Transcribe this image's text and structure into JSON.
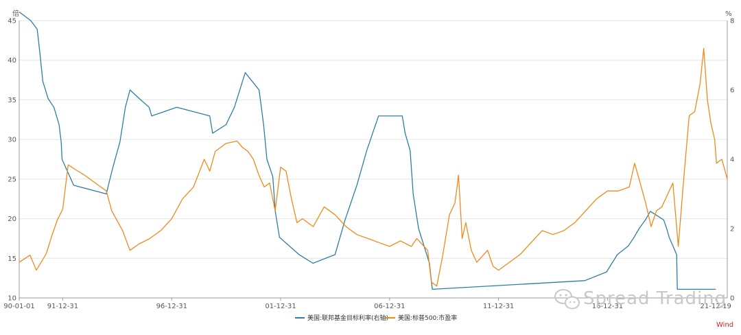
{
  "chart_data": {
    "type": "line",
    "left_axis": {
      "unit": "倍",
      "range": [
        10,
        45
      ],
      "ticks": [
        10,
        15,
        20,
        25,
        30,
        35,
        40,
        45
      ]
    },
    "right_axis": {
      "unit": "%",
      "range": [
        0,
        8
      ],
      "ticks": [
        0,
        2,
        4,
        6,
        8
      ]
    },
    "x_axis": {
      "range": [
        "1990-01-01",
        "2022-06-30"
      ],
      "ticks": [
        {
          "date": "1990-01-01",
          "label": "90-01-01"
        },
        {
          "date": "1991-12-31",
          "label": "91-12-31"
        },
        {
          "date": "1996-12-31",
          "label": "96-12-31"
        },
        {
          "date": "2001-12-31",
          "label": "01-12-31"
        },
        {
          "date": "2006-12-31",
          "label": "06-12-31"
        },
        {
          "date": "2011-12-31",
          "label": "11-12-31"
        },
        {
          "date": "2016-12-31",
          "label": "16-12-31"
        },
        {
          "date": "2021-12-19",
          "label": "21-12-19"
        }
      ]
    },
    "grid": true,
    "legend_position": "bottom",
    "source": "Wind",
    "watermark": "Spread Trading",
    "series": [
      {
        "name": "美国:联邦基金目标利率(右轴)",
        "axis": "right",
        "color": "#2e7ca3",
        "points": [
          [
            "1990-01-01",
            8.25
          ],
          [
            "1990-07-13",
            8.0
          ],
          [
            "1990-10-29",
            7.75
          ],
          [
            "1990-12-18",
            7.0
          ],
          [
            "1991-02-01",
            6.25
          ],
          [
            "1991-04-30",
            5.75
          ],
          [
            "1991-08-06",
            5.5
          ],
          [
            "1991-10-31",
            5.0
          ],
          [
            "1991-12-06",
            4.5
          ],
          [
            "1991-12-20",
            4.0
          ],
          [
            "1992-07-02",
            3.25
          ],
          [
            "1993-12-31",
            3.0
          ],
          [
            "1994-02-04",
            3.25
          ],
          [
            "1994-04-18",
            3.75
          ],
          [
            "1994-08-16",
            4.5
          ],
          [
            "1994-11-15",
            5.5
          ],
          [
            "1995-02-01",
            6.0
          ],
          [
            "1995-07-06",
            5.75
          ],
          [
            "1995-12-19",
            5.5
          ],
          [
            "1996-01-31",
            5.25
          ],
          [
            "1997-03-25",
            5.5
          ],
          [
            "1998-09-29",
            5.25
          ],
          [
            "1998-11-17",
            4.75
          ],
          [
            "1999-06-30",
            5.0
          ],
          [
            "1999-11-16",
            5.5
          ],
          [
            "2000-05-16",
            6.5
          ],
          [
            "2001-01-03",
            6.0
          ],
          [
            "2001-03-20",
            5.0
          ],
          [
            "2001-05-15",
            4.0
          ],
          [
            "2001-08-21",
            3.5
          ],
          [
            "2001-10-02",
            2.5
          ],
          [
            "2001-12-11",
            1.75
          ],
          [
            "2002-11-06",
            1.25
          ],
          [
            "2003-06-25",
            1.0
          ],
          [
            "2004-06-30",
            1.25
          ],
          [
            "2004-12-14",
            2.25
          ],
          [
            "2005-06-30",
            3.25
          ],
          [
            "2005-12-13",
            4.25
          ],
          [
            "2006-06-29",
            5.25
          ],
          [
            "2007-08-01",
            5.25
          ],
          [
            "2007-09-18",
            4.75
          ],
          [
            "2007-12-11",
            4.25
          ],
          [
            "2008-01-30",
            3.0
          ],
          [
            "2008-04-30",
            2.0
          ],
          [
            "2008-10-29",
            1.0
          ],
          [
            "2008-12-16",
            0.25
          ],
          [
            "2015-12-16",
            0.5
          ],
          [
            "2016-12-14",
            0.75
          ],
          [
            "2017-06-14",
            1.25
          ],
          [
            "2017-12-13",
            1.5
          ],
          [
            "2018-03-21",
            1.75
          ],
          [
            "2018-06-13",
            2.0
          ],
          [
            "2018-09-26",
            2.25
          ],
          [
            "2018-12-19",
            2.5
          ],
          [
            "2019-07-31",
            2.25
          ],
          [
            "2019-09-18",
            2.0
          ],
          [
            "2019-10-30",
            1.75
          ],
          [
            "2020-03-03",
            1.25
          ],
          [
            "2020-03-15",
            0.25
          ],
          [
            "2021-12-19",
            0.25
          ]
        ]
      },
      {
        "name": "美国:标普500:市盈率",
        "axis": "left",
        "color": "#ee8a18",
        "points": [
          [
            "1990-01-01",
            14.5
          ],
          [
            "1990-06-30",
            15.4
          ],
          [
            "1990-10-15",
            13.5
          ],
          [
            "1991-03-31",
            15.6
          ],
          [
            "1991-06-30",
            17.8
          ],
          [
            "1991-09-30",
            19.8
          ],
          [
            "1991-12-31",
            21.2
          ],
          [
            "1992-03-31",
            26.8
          ],
          [
            "1992-07-31",
            26.2
          ],
          [
            "1992-12-31",
            25.5
          ],
          [
            "1993-06-30",
            24.5
          ],
          [
            "1993-12-31",
            23.5
          ],
          [
            "1994-03-31",
            21.0
          ],
          [
            "1994-09-30",
            18.5
          ],
          [
            "1995-01-31",
            16.0
          ],
          [
            "1995-06-30",
            16.8
          ],
          [
            "1995-12-31",
            17.5
          ],
          [
            "1996-06-30",
            18.5
          ],
          [
            "1996-12-31",
            20.0
          ],
          [
            "1997-06-30",
            22.5
          ],
          [
            "1997-12-31",
            24.0
          ],
          [
            "1998-06-30",
            27.5
          ],
          [
            "1998-09-30",
            26.0
          ],
          [
            "1998-12-31",
            28.5
          ],
          [
            "1999-06-30",
            29.5
          ],
          [
            "1999-12-31",
            29.8
          ],
          [
            "2000-03-31",
            29.0
          ],
          [
            "2000-06-30",
            28.5
          ],
          [
            "2000-09-30",
            27.5
          ],
          [
            "2000-12-31",
            25.5
          ],
          [
            "2001-03-31",
            24.0
          ],
          [
            "2001-06-30",
            24.5
          ],
          [
            "2001-09-30",
            21.0
          ],
          [
            "2001-12-31",
            26.5
          ],
          [
            "2002-03-31",
            26.0
          ],
          [
            "2002-06-30",
            22.5
          ],
          [
            "2002-09-30",
            19.5
          ],
          [
            "2002-12-31",
            20.0
          ],
          [
            "2003-06-30",
            19.0
          ],
          [
            "2003-12-31",
            21.5
          ],
          [
            "2004-06-30",
            20.5
          ],
          [
            "2004-12-31",
            19.0
          ],
          [
            "2005-06-30",
            18.0
          ],
          [
            "2005-12-31",
            17.5
          ],
          [
            "2006-06-30",
            17.0
          ],
          [
            "2006-12-31",
            16.5
          ],
          [
            "2007-06-30",
            17.2
          ],
          [
            "2007-12-31",
            16.5
          ],
          [
            "2008-03-31",
            17.5
          ],
          [
            "2008-09-30",
            16.0
          ],
          [
            "2008-11-30",
            12.0
          ],
          [
            "2009-02-28",
            11.5
          ],
          [
            "2009-05-31",
            15.0
          ],
          [
            "2009-09-30",
            20.5
          ],
          [
            "2009-12-31",
            22.0
          ],
          [
            "2010-02-28",
            25.5
          ],
          [
            "2010-04-30",
            17.5
          ],
          [
            "2010-06-30",
            19.5
          ],
          [
            "2010-09-30",
            16.0
          ],
          [
            "2010-12-31",
            14.5
          ],
          [
            "2011-06-30",
            16.0
          ],
          [
            "2011-09-30",
            14.0
          ],
          [
            "2011-12-31",
            13.5
          ],
          [
            "2012-06-30",
            14.5
          ],
          [
            "2012-12-31",
            15.5
          ],
          [
            "2013-06-30",
            17.0
          ],
          [
            "2013-12-31",
            18.5
          ],
          [
            "2014-06-30",
            18.0
          ],
          [
            "2014-12-31",
            18.5
          ],
          [
            "2015-06-30",
            19.5
          ],
          [
            "2015-12-31",
            21.0
          ],
          [
            "2016-06-30",
            22.5
          ],
          [
            "2016-12-31",
            23.5
          ],
          [
            "2017-06-30",
            23.5
          ],
          [
            "2017-12-31",
            24.0
          ],
          [
            "2018-03-31",
            27.0
          ],
          [
            "2018-06-30",
            24.5
          ],
          [
            "2018-09-30",
            22.0
          ],
          [
            "2018-12-31",
            19.0
          ],
          [
            "2019-03-31",
            21.0
          ],
          [
            "2019-06-30",
            21.5
          ],
          [
            "2019-09-30",
            23.0
          ],
          [
            "2019-12-31",
            24.5
          ],
          [
            "2020-03-31",
            16.5
          ],
          [
            "2020-06-30",
            25.0
          ],
          [
            "2020-09-30",
            33.0
          ],
          [
            "2020-12-31",
            33.5
          ],
          [
            "2021-03-31",
            37.0
          ],
          [
            "2021-05-31",
            41.5
          ],
          [
            "2021-07-31",
            35.0
          ],
          [
            "2021-09-30",
            32.0
          ],
          [
            "2021-11-30",
            30.0
          ],
          [
            "2021-12-31",
            27.0
          ],
          [
            "2022-03-31",
            27.5
          ],
          [
            "2022-06-30",
            25.0
          ]
        ]
      }
    ]
  }
}
